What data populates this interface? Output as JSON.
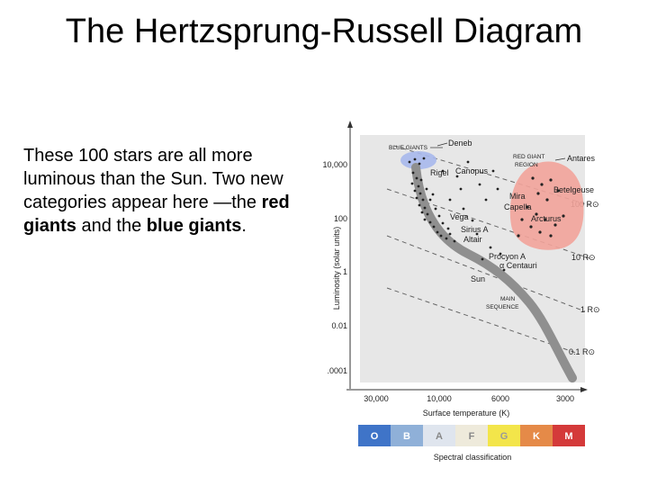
{
  "title": "The Hertzsprung-Russell Diagram",
  "body": {
    "part1": "These 100 stars are all more luminous than the Sun. Two new categories appear here —the ",
    "red_giants": "red giants",
    "part2": " and the ",
    "blue_giants": "blue giants",
    "part3": "."
  },
  "diagram": {
    "y_axis_label": "Luminosity (solar units)",
    "x_axis_label": "Surface temperature (K)",
    "x_scale": "log, decreasing to the right",
    "y_scale": "log",
    "y_ticks": [
      "10,000",
      "100",
      "1",
      "0.01",
      ".0001"
    ],
    "x_ticks": [
      "30,000",
      "10,000",
      "6000",
      "3000"
    ],
    "spectral_label": "Spectral classification",
    "spectral_classes": [
      {
        "letter": "O",
        "color": "#3f74c8"
      },
      {
        "letter": "B",
        "color": "#8fb0d8"
      },
      {
        "letter": "A",
        "color": "#dfe5ee"
      },
      {
        "letter": "F",
        "color": "#eeeadb"
      },
      {
        "letter": "G",
        "color": "#f3e54a"
      },
      {
        "letter": "K",
        "color": "#e58a48"
      },
      {
        "letter": "M",
        "color": "#d43a3a"
      }
    ],
    "regions": {
      "blue_giants": "BLUE GIANTS",
      "red_giant_line1": "RED GIANT",
      "red_giant_line2": "REGION",
      "main_seq_line1": "MAIN",
      "main_seq_line2": "SEQUENCE"
    },
    "radius_lines": [
      "100 R⊙",
      "10 R⊙",
      "1 R⊙",
      "0.1 R⊙"
    ],
    "stars": [
      "Deneb",
      "Rigel",
      "Canopus",
      "Antares",
      "Betelgeuse",
      "Mira",
      "Capella",
      "Arcturus",
      "Vega",
      "Sirius A",
      "Altair",
      "Procyon A",
      "α Centauri",
      "Sun"
    ],
    "colors": {
      "background": "#e7e7e7",
      "blue_region": "#a7b8ec",
      "red_region": "#f2a39a",
      "main_sequence": "#8f8f8f"
    }
  }
}
